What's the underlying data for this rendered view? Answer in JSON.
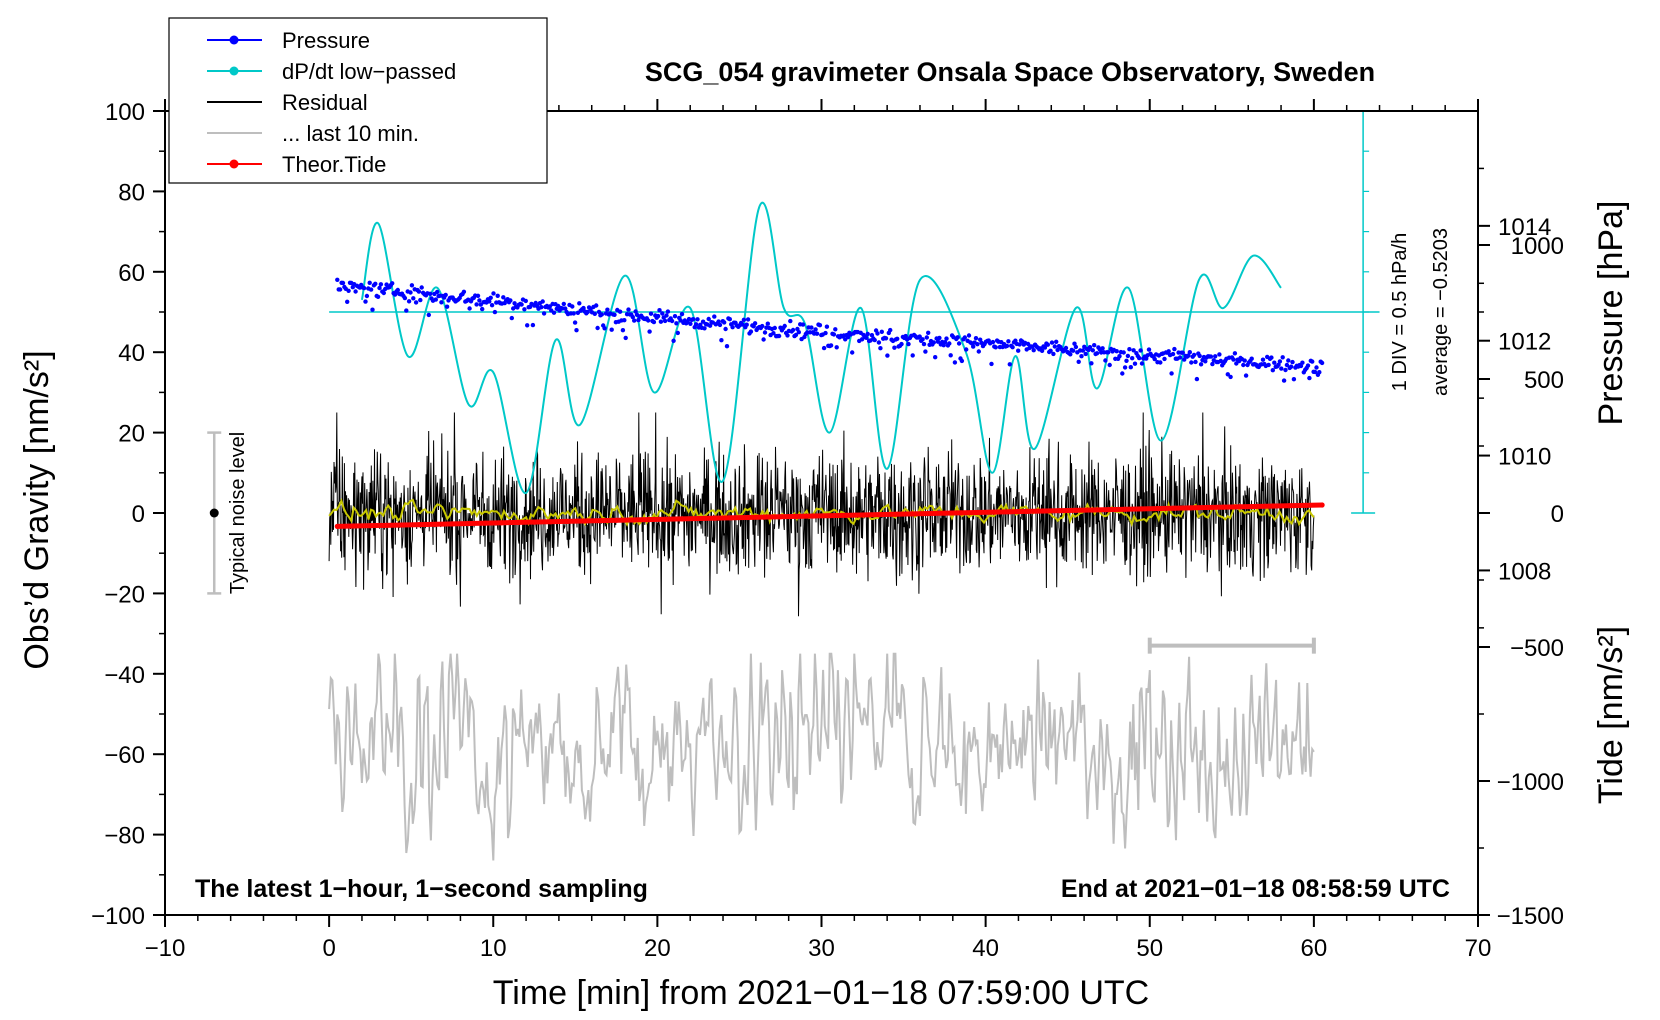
{
  "chart_data": {
    "type": "line",
    "title": "SCG_054 gravimeter Onsala Space Observatory, Sweden",
    "xlabel": "Time [min] from 2021−01−18 07:59:00 UTC",
    "ylabel_left": "Obs’d Gravity [nm/s²]",
    "ylabel_right_pressure": "Pressure [hPa]",
    "ylabel_right_tide": "Tide [nm/s²]",
    "xlim": [
      -10,
      70
    ],
    "ylim": [
      -100,
      100
    ],
    "pressure_lim": [
      1002,
      1016
    ],
    "tide_lim": [
      -1500,
      1500
    ],
    "x_ticks": [
      -10,
      0,
      10,
      20,
      30,
      40,
      50,
      60,
      70
    ],
    "x_tick_labels": [
      "−10",
      "0",
      "10",
      "20",
      "30",
      "40",
      "50",
      "60",
      "70"
    ],
    "y_ticks": [
      -100,
      -80,
      -60,
      -40,
      -20,
      0,
      20,
      40,
      60,
      80,
      100
    ],
    "y_tick_labels": [
      "−100",
      "−80",
      "−60",
      "−40",
      "−20",
      "0",
      "20",
      "40",
      "60",
      "80",
      "100"
    ],
    "pressure_ticks": [
      1008,
      1010,
      1012,
      1014
    ],
    "pressure_tick_labels": [
      "1008",
      "1010",
      "1012",
      "1014"
    ],
    "tide_ticks": [
      -1500,
      -1000,
      -500,
      0,
      500,
      1000
    ],
    "tide_tick_labels": [
      "−1500",
      "−1000",
      "−500",
      "0",
      "500",
      "1000"
    ],
    "legend": [
      {
        "label": "Pressure",
        "color": "#0000ff",
        "marker": true
      },
      {
        "label": "dP/dt low−passed",
        "color": "#00c8c8",
        "marker": true
      },
      {
        "label": "Residual",
        "color": "#000000",
        "marker": false
      },
      {
        "label": "... last 10 min.",
        "color": "#bebebe",
        "marker": false
      },
      {
        "label": "Theor.Tide",
        "color": "#ff0000",
        "marker": true
      }
    ],
    "series": [
      {
        "name": "Pressure",
        "axis": "pressure",
        "color": "#0000ff",
        "x": [
          0.5,
          10,
          20,
          30,
          40,
          50,
          60.5
        ],
        "values": [
          1012.95,
          1012.7,
          1012.4,
          1012.15,
          1011.95,
          1011.75,
          1011.55
        ]
      },
      {
        "name": "dP/dt low−passed",
        "axis": "gravity",
        "color": "#00c8c8",
        "x": [
          2,
          3,
          4.8,
          6.6,
          8.5,
          10,
          12,
          13.8,
          15.3,
          18,
          19.8,
          22,
          24,
          26.2,
          27.7,
          29,
          30.5,
          32.4,
          34,
          36,
          38.8,
          40.4,
          41.8,
          43,
          45.5,
          46.8,
          48.7,
          50.7,
          53,
          54.5,
          56.3,
          58
        ],
        "values": [
          53,
          72,
          39,
          56,
          27,
          35,
          5,
          43,
          22,
          59,
          30,
          51,
          8,
          76,
          51,
          47,
          20,
          51,
          11,
          58,
          40,
          10,
          39,
          16,
          51,
          31,
          56,
          18,
          58,
          51,
          64,
          56
        ]
      },
      {
        "name": "dP/dt average line",
        "axis": "gravity",
        "color": "#00c8c8",
        "x": [
          0,
          64
        ],
        "values": [
          50,
          50
        ]
      },
      {
        "name": "Residual",
        "axis": "gravity",
        "color": "#000000",
        "x_range": [
          0,
          60
        ],
        "amplitude_range": [
          -28,
          25
        ]
      },
      {
        "name": "Residual smoothed",
        "axis": "gravity",
        "color": "#c8c800",
        "x_range": [
          0,
          60
        ],
        "values_near": 0
      },
      {
        "name": "... last 10 min.",
        "axis": "gravity",
        "color": "#bebebe",
        "x_range": [
          0,
          60
        ],
        "offset": -58,
        "amplitude_range": [
          -88,
          -35
        ]
      },
      {
        "name": "Theor.Tide",
        "axis": "tide",
        "color": "#ff0000",
        "x": [
          0.5,
          60.5
        ],
        "values": [
          -50,
          30
        ]
      }
    ],
    "noise_label": "Typical noise level",
    "noise_range": [
      -20,
      20
    ],
    "dpdt_div_label": "1 DIV = 0.5 hPa/h",
    "dpdt_average_label": "average = −0.5203",
    "window_bar_range": [
      50,
      60
    ],
    "note_left": "The latest 1−hour, 1−second sampling",
    "note_right": "End at 2021−01−18 08:58:59 UTC"
  }
}
